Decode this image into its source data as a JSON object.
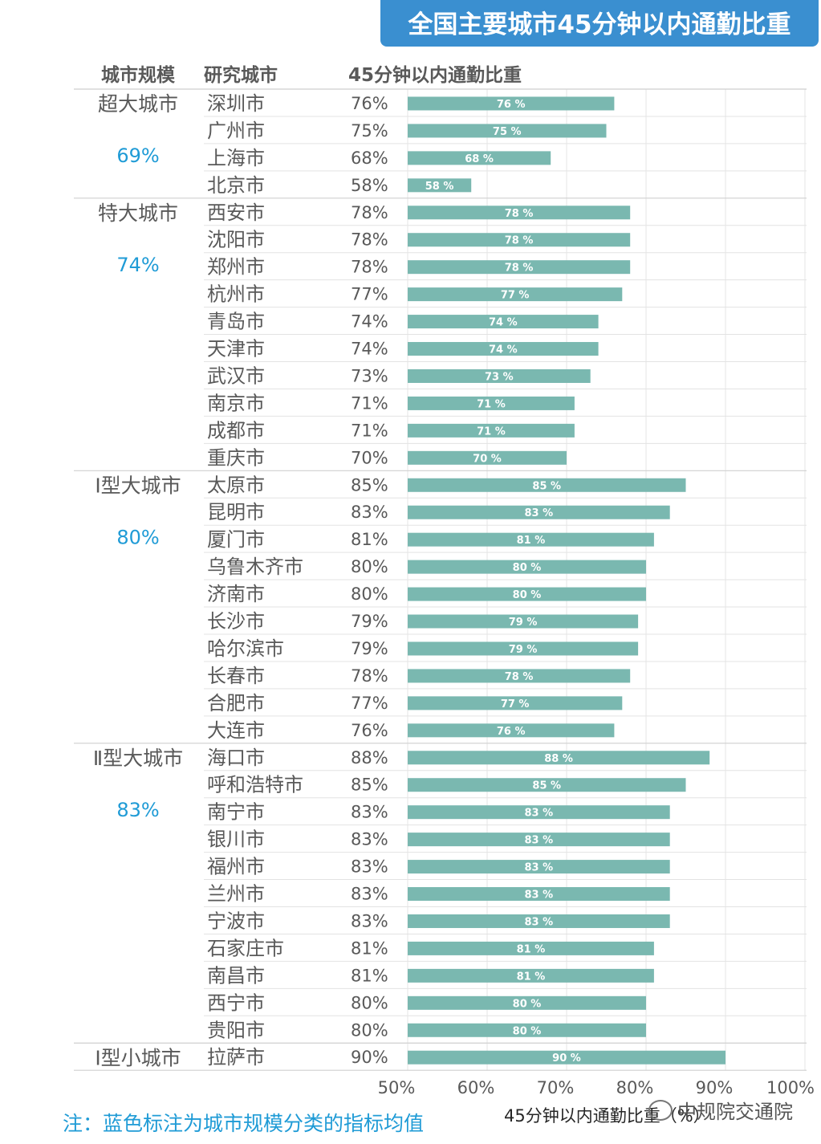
{
  "title": "全国主要城市45分钟以内通勤比重",
  "headers": {
    "scale": "城市规模",
    "city": "研究城市",
    "ratio": "45分钟以内通勤比重"
  },
  "note": "注：蓝色标注为城市规模分类的指标均值",
  "watermark": "中规院交通院",
  "colors": {
    "bar": "#7ab8b0",
    "title_bg": "#3a8fd0",
    "avg": "#1f9bd6",
    "grid": "#e6e6e6",
    "text": "#595959"
  },
  "chart_data": {
    "type": "bar",
    "orientation": "horizontal",
    "xlabel": "45分钟以内通勤比重（%）",
    "xlim": [
      50,
      100
    ],
    "xticks": [
      "50%",
      "60%",
      "70%",
      "80%",
      "90%",
      "100%"
    ],
    "xtick_values": [
      50,
      60,
      70,
      80,
      90,
      100
    ],
    "grid": true,
    "groups": [
      {
        "name": "超大城市",
        "avg": "69%",
        "cities": [
          {
            "city": "深圳市",
            "value": 76,
            "label": "76%",
            "bar_label": "76 %"
          },
          {
            "city": "广州市",
            "value": 75,
            "label": "75%",
            "bar_label": "75 %"
          },
          {
            "city": "上海市",
            "value": 68,
            "label": "68%",
            "bar_label": "68 %"
          },
          {
            "city": "北京市",
            "value": 58,
            "label": "58%",
            "bar_label": "58 %"
          }
        ]
      },
      {
        "name": "特大城市",
        "avg": "74%",
        "cities": [
          {
            "city": "西安市",
            "value": 78,
            "label": "78%",
            "bar_label": "78 %"
          },
          {
            "city": "沈阳市",
            "value": 78,
            "label": "78%",
            "bar_label": "78 %"
          },
          {
            "city": "郑州市",
            "value": 78,
            "label": "78%",
            "bar_label": "78 %"
          },
          {
            "city": "杭州市",
            "value": 77,
            "label": "77%",
            "bar_label": "77 %"
          },
          {
            "city": "青岛市",
            "value": 74,
            "label": "74%",
            "bar_label": "74 %"
          },
          {
            "city": "天津市",
            "value": 74,
            "label": "74%",
            "bar_label": "74 %"
          },
          {
            "city": "武汉市",
            "value": 73,
            "label": "73%",
            "bar_label": "73 %"
          },
          {
            "city": "南京市",
            "value": 71,
            "label": "71%",
            "bar_label": "71 %"
          },
          {
            "city": "成都市",
            "value": 71,
            "label": "71%",
            "bar_label": "71 %"
          },
          {
            "city": "重庆市",
            "value": 70,
            "label": "70%",
            "bar_label": "70 %"
          }
        ]
      },
      {
        "name": "Ⅰ型大城市",
        "avg": "80%",
        "cities": [
          {
            "city": "太原市",
            "value": 85,
            "label": "85%",
            "bar_label": "85 %"
          },
          {
            "city": "昆明市",
            "value": 83,
            "label": "83%",
            "bar_label": "83 %"
          },
          {
            "city": "厦门市",
            "value": 81,
            "label": "81%",
            "bar_label": "81 %"
          },
          {
            "city": "乌鲁木齐市",
            "value": 80,
            "label": "80%",
            "bar_label": "80 %"
          },
          {
            "city": "济南市",
            "value": 80,
            "label": "80%",
            "bar_label": "80 %"
          },
          {
            "city": "长沙市",
            "value": 79,
            "label": "79%",
            "bar_label": "79 %"
          },
          {
            "city": "哈尔滨市",
            "value": 79,
            "label": "79%",
            "bar_label": "79 %"
          },
          {
            "city": "长春市",
            "value": 78,
            "label": "78%",
            "bar_label": "78 %"
          },
          {
            "city": "合肥市",
            "value": 77,
            "label": "77%",
            "bar_label": "77 %"
          },
          {
            "city": "大连市",
            "value": 76,
            "label": "76%",
            "bar_label": "76 %"
          }
        ]
      },
      {
        "name": "Ⅱ型大城市",
        "avg": "83%",
        "cities": [
          {
            "city": "海口市",
            "value": 88,
            "label": "88%",
            "bar_label": "88 %"
          },
          {
            "city": "呼和浩特市",
            "value": 85,
            "label": "85%",
            "bar_label": "85 %"
          },
          {
            "city": "南宁市",
            "value": 83,
            "label": "83%",
            "bar_label": "83 %"
          },
          {
            "city": "银川市",
            "value": 83,
            "label": "83%",
            "bar_label": "83 %"
          },
          {
            "city": "福州市",
            "value": 83,
            "label": "83%",
            "bar_label": "83 %"
          },
          {
            "city": "兰州市",
            "value": 83,
            "label": "83%",
            "bar_label": "83 %"
          },
          {
            "city": "宁波市",
            "value": 83,
            "label": "83%",
            "bar_label": "83 %"
          },
          {
            "city": "石家庄市",
            "value": 81,
            "label": "81%",
            "bar_label": "81 %"
          },
          {
            "city": "南昌市",
            "value": 81,
            "label": "81%",
            "bar_label": "81 %"
          },
          {
            "city": "西宁市",
            "value": 80,
            "label": "80%",
            "bar_label": "80 %"
          },
          {
            "city": "贵阳市",
            "value": 80,
            "label": "80%",
            "bar_label": "80 %"
          }
        ]
      },
      {
        "name": "Ⅰ型小城市",
        "avg": "",
        "cities": [
          {
            "city": "拉萨市",
            "value": 90,
            "label": "90%",
            "bar_label": "90 %"
          }
        ]
      }
    ]
  }
}
